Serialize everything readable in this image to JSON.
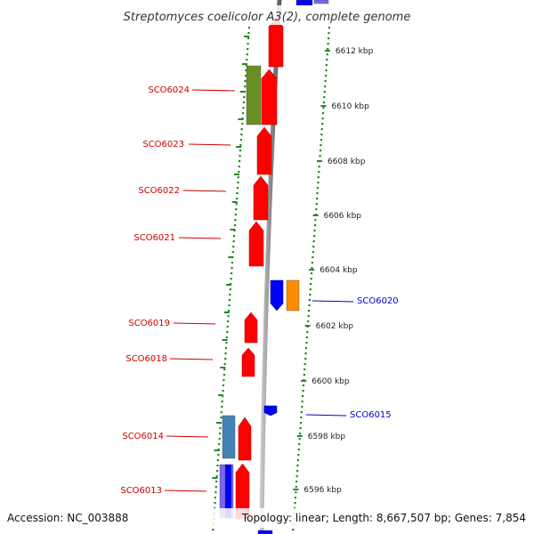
{
  "title": "Streptomyces coelicolor A3(2), complete genome",
  "footer": {
    "accession": "Accession: NC_003888",
    "topology": "Topology: linear; Length: 8,667,507 bp; Genes: 7,854"
  },
  "colors": {
    "forward": "#ff0000",
    "reverse": "#0000ff",
    "olive": "#6b8e23",
    "orange": "#ff8c00",
    "steel": "#4682b4",
    "slate": "#7b68ee",
    "axis": "#888888",
    "tick": "#228b22",
    "forward_label": "#cc0000",
    "reverse_label": "#0000cc"
  },
  "scale_ticks": [
    {
      "label": "6612 kbp"
    },
    {
      "label": "6610 kbp"
    },
    {
      "label": "6608 kbp"
    },
    {
      "label": "6606 kbp"
    },
    {
      "label": "6604 kbp"
    },
    {
      "label": "6602 kbp"
    },
    {
      "label": "6600 kbp"
    },
    {
      "label": "6598 kbp"
    },
    {
      "label": "6596 kbp"
    }
  ],
  "gene_labels": [
    {
      "text": "SCO6024",
      "strand": "forward"
    },
    {
      "text": "SCO6023",
      "strand": "forward"
    },
    {
      "text": "SCO6022",
      "strand": "forward"
    },
    {
      "text": "SCO6021",
      "strand": "forward"
    },
    {
      "text": "SCO6020",
      "strand": "reverse"
    },
    {
      "text": "SCO6019",
      "strand": "forward"
    },
    {
      "text": "SCO6018",
      "strand": "forward"
    },
    {
      "text": "SCO6015",
      "strand": "reverse"
    },
    {
      "text": "SCO6014",
      "strand": "forward"
    },
    {
      "text": "SCO6013",
      "strand": "forward"
    }
  ]
}
